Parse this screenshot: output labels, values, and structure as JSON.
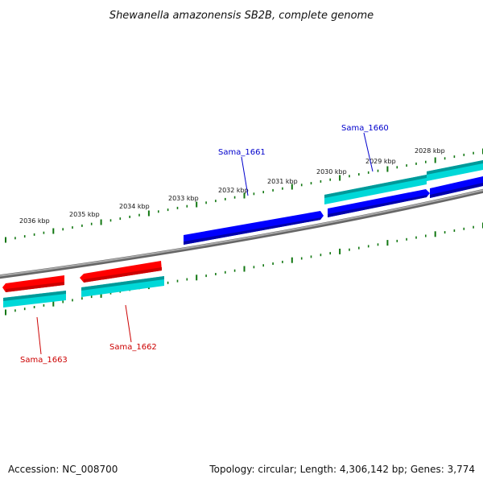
{
  "title": "Shewanella amazonensis SB2B, complete genome",
  "footer": {
    "accession": "Accession: NC_008700",
    "summary": "Topology: circular; Length: 4,306,142 bp; Genes: 3,774"
  },
  "scale_labels": [
    "2036 kbp",
    "2035 kbp",
    "2034 kbp",
    "2033 kbp",
    "2032 kbp",
    "2031 kbp",
    "2030 kbp",
    "2029 kbp",
    "2028 kbp"
  ],
  "gene_labels": [
    {
      "text": "Sama_1660",
      "color": "#0000cc"
    },
    {
      "text": "Sama_1661",
      "color": "#0000cc"
    },
    {
      "text": "Sama_1662",
      "color": "#cc0000"
    },
    {
      "text": "Sama_1663",
      "color": "#cc0000"
    }
  ],
  "colors": {
    "forward_gene": "#0000ff",
    "reverse_gene": "#ff0000",
    "cds_feature": "#00cccc",
    "backbone": "#888888",
    "ticks": "#117711"
  }
}
